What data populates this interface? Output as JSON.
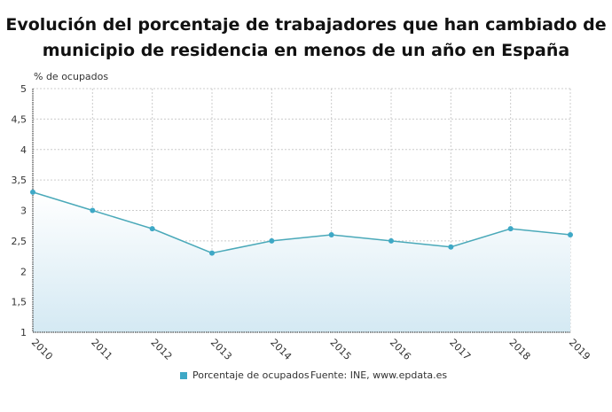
{
  "chart_data": {
    "type": "area",
    "title": "Evolución del porcentaje de trabajadores que han cambiado de municipio de residencia en menos de un año en España",
    "ylabel": "% de ocupados",
    "xlabel": "",
    "categories": [
      "2010",
      "2011",
      "2012",
      "2013",
      "2014",
      "2015",
      "2016",
      "2017",
      "2018",
      "2019"
    ],
    "series": [
      {
        "name": "Porcentaje de ocupados",
        "values": [
          3.3,
          3.0,
          2.7,
          2.3,
          2.5,
          2.6,
          2.5,
          2.4,
          2.7,
          2.6
        ]
      }
    ],
    "ylim": [
      1,
      5
    ],
    "yticks": [
      "1",
      "1,5",
      "2",
      "2,5",
      "3",
      "3,5",
      "4",
      "4,5",
      "5"
    ],
    "grid": true,
    "legend_position": "bottom",
    "source": "Fuente: INE, www.epdata.es",
    "colors": {
      "line": "#4aa9b9",
      "marker": "#3ea8c6",
      "fill_top": "#ffffff",
      "fill_bottom": "#d4e9f3"
    }
  }
}
